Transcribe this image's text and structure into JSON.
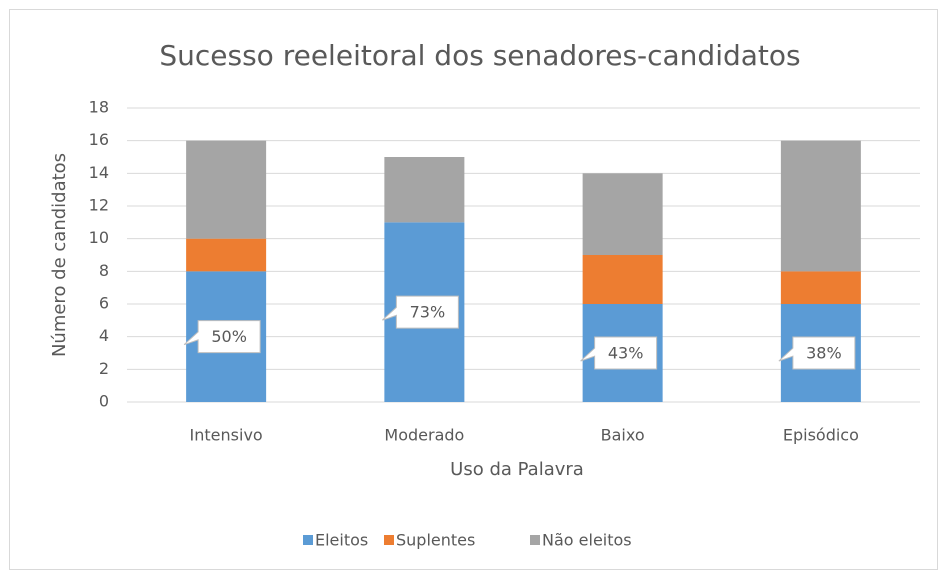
{
  "chart_data": {
    "type": "stacked_bar",
    "title": "Sucesso reeleitoral dos senadores-candidatos",
    "x_label": "Uso da Palavra",
    "y_label": "Número de candidatos",
    "categories": [
      "Intensivo",
      "Moderado",
      "Baixo",
      "Episódico"
    ],
    "series": [
      {
        "name": "Eleitos",
        "color": "#5b9bd5",
        "values": [
          8,
          11,
          6,
          6
        ]
      },
      {
        "name": "Suplentes",
        "color": "#ed7d31",
        "values": [
          2,
          0,
          3,
          2
        ]
      },
      {
        "name": "Não eleitos",
        "color": "#a5a5a5",
        "values": [
          6,
          4,
          5,
          8
        ]
      }
    ],
    "annotations": [
      "50%",
      "73%",
      "43%",
      "38%"
    ],
    "ylim": [
      0,
      18
    ],
    "yticks": [
      0,
      2,
      4,
      6,
      8,
      10,
      12,
      14,
      16,
      18
    ],
    "grid": true,
    "legend": "bottom"
  }
}
